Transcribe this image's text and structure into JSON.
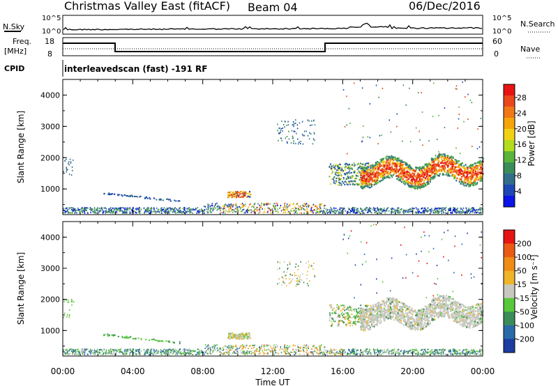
{
  "header": {
    "title": "Christmas Valley East (fitACF)",
    "beam": "Beam 04",
    "date": "06/Dec/2016"
  },
  "top_panels": {
    "nsky_label": "N.Sky",
    "nsky_ticks": [
      "10^5",
      "10^0"
    ],
    "nsearch_label": "N.Search",
    "nsearch_ticks": [
      "10^5",
      "10^0"
    ],
    "freq_label_1": "Freq.",
    "freq_label_2": "[MHz]",
    "freq_ticks": [
      "18",
      "8"
    ],
    "nave_label": "Nave",
    "nave_ticks": [
      "60",
      "0"
    ],
    "cpid_label": "CPID",
    "cpid_value": "interleavedscan (fast) -191 RF"
  },
  "chart_data": [
    {
      "type": "heatmap",
      "name": "power",
      "ylabel": "Slant Range [km]",
      "yticks": [
        "1000",
        "2000",
        "3000",
        "4000"
      ],
      "colorbar_label": "Power [dB]",
      "colorbar_ticks": [
        "4",
        "8",
        "12",
        "16",
        "20",
        "24",
        "28"
      ],
      "colorbar_colors": [
        "#0a14e6",
        "#1e46b4",
        "#326e8c",
        "#3c8c5a",
        "#5ab43c",
        "#b4dc1e",
        "#f0d214",
        "#f5a50a",
        "#f07814",
        "#eb461e",
        "#e61414"
      ],
      "xlim": [
        "00:00",
        "24:00"
      ],
      "ylim_km": [
        180,
        4500
      ]
    },
    {
      "type": "heatmap",
      "name": "velocity",
      "ylabel": "Slant Range [km]",
      "yticks": [
        "1000",
        "2000",
        "3000",
        "4000"
      ],
      "colorbar_label": "Velocity [m s⁻¹]",
      "colorbar_ticks": [
        "200",
        "100",
        "50",
        "15",
        "-15",
        "-50",
        "-100",
        "-200"
      ],
      "colorbar_colors": [
        "#1c3ca0",
        "#2a6aa8",
        "#3c8c5a",
        "#5ac83c",
        "#c8c8c0",
        "#f0b428",
        "#f08c14",
        "#eb5a14",
        "#e61414"
      ],
      "xlim": [
        "00:00",
        "24:00"
      ],
      "ylim_km": [
        180,
        4500
      ]
    }
  ],
  "x_axis": {
    "ticks": [
      "00:00",
      "04:00",
      "08:00",
      "12:00",
      "16:00",
      "20:00",
      "00:00"
    ],
    "label": "Time UT"
  }
}
